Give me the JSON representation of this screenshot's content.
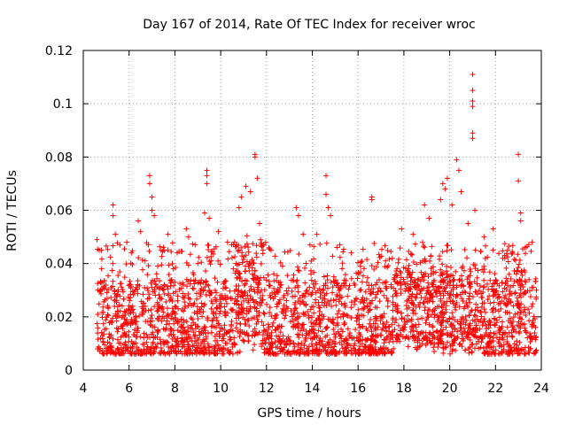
{
  "chart_data": {
    "type": "scatter",
    "title": "Day 167 of 2014, Rate Of TEC Index for receiver wroc",
    "xlabel": "GPS time / hours",
    "ylabel": "ROTI / TECUs",
    "xlim": [
      4,
      24
    ],
    "ylim": [
      0,
      0.12
    ],
    "xticks": [
      4,
      6,
      8,
      10,
      12,
      14,
      16,
      18,
      20,
      22,
      24
    ],
    "xtick_labels": [
      "4",
      "6",
      "8",
      "10",
      "12",
      "14",
      "16",
      "18",
      "20",
      "22",
      "24"
    ],
    "yticks": [
      0,
      0.02,
      0.04,
      0.06,
      0.08,
      0.1,
      0.12
    ],
    "ytick_labels": [
      "0",
      "0.02",
      "0.04",
      "0.06",
      "0.08",
      "0.1",
      "0.12"
    ],
    "grid": true,
    "marker": "+",
    "color": "#ff0000",
    "series": [
      {
        "name": "ROTI",
        "points": [
          [
            4.6,
            0.049
          ],
          [
            4.7,
            0.045
          ],
          [
            4.8,
            0.038
          ],
          [
            4.9,
            0.031
          ],
          [
            5.3,
            0.062
          ],
          [
            5.3,
            0.058
          ],
          [
            5.4,
            0.051
          ],
          [
            5.6,
            0.047
          ],
          [
            5.9,
            0.048
          ],
          [
            6.1,
            0.044
          ],
          [
            6.4,
            0.056
          ],
          [
            6.5,
            0.052
          ],
          [
            6.7,
            0.041
          ],
          [
            6.9,
            0.073
          ],
          [
            6.9,
            0.07
          ],
          [
            7.0,
            0.065
          ],
          [
            7.0,
            0.06
          ],
          [
            7.1,
            0.058
          ],
          [
            7.4,
            0.045
          ],
          [
            7.7,
            0.051
          ],
          [
            8.1,
            0.044
          ],
          [
            8.5,
            0.053
          ],
          [
            8.6,
            0.05
          ],
          [
            9.0,
            0.04
          ],
          [
            9.3,
            0.059
          ],
          [
            9.4,
            0.075
          ],
          [
            9.4,
            0.073
          ],
          [
            9.4,
            0.07
          ],
          [
            9.5,
            0.057
          ],
          [
            9.9,
            0.052
          ],
          [
            10.3,
            0.048
          ],
          [
            10.8,
            0.061
          ],
          [
            10.9,
            0.065
          ],
          [
            11.1,
            0.069
          ],
          [
            11.3,
            0.067
          ],
          [
            11.5,
            0.081
          ],
          [
            11.5,
            0.08
          ],
          [
            11.6,
            0.072
          ],
          [
            11.7,
            0.055
          ],
          [
            12.2,
            0.045
          ],
          [
            12.7,
            0.039
          ],
          [
            13.3,
            0.061
          ],
          [
            13.4,
            0.058
          ],
          [
            13.6,
            0.051
          ],
          [
            13.9,
            0.047
          ],
          [
            14.2,
            0.051
          ],
          [
            14.6,
            0.073
          ],
          [
            14.6,
            0.066
          ],
          [
            14.7,
            0.061
          ],
          [
            14.8,
            0.058
          ],
          [
            15.2,
            0.047
          ],
          [
            15.7,
            0.044
          ],
          [
            16.1,
            0.039
          ],
          [
            16.6,
            0.065
          ],
          [
            16.6,
            0.064
          ],
          [
            17.2,
            0.041
          ],
          [
            17.9,
            0.053
          ],
          [
            18.4,
            0.051
          ],
          [
            18.9,
            0.062
          ],
          [
            19.1,
            0.057
          ],
          [
            19.6,
            0.064
          ],
          [
            19.7,
            0.07
          ],
          [
            19.8,
            0.068
          ],
          [
            19.9,
            0.072
          ],
          [
            20.1,
            0.062
          ],
          [
            20.3,
            0.079
          ],
          [
            20.4,
            0.075
          ],
          [
            20.5,
            0.067
          ],
          [
            20.8,
            0.055
          ],
          [
            21.0,
            0.111
          ],
          [
            21.0,
            0.105
          ],
          [
            21.0,
            0.101
          ],
          [
            21.0,
            0.099
          ],
          [
            21.0,
            0.089
          ],
          [
            21.0,
            0.087
          ],
          [
            21.1,
            0.06
          ],
          [
            21.5,
            0.05
          ],
          [
            21.9,
            0.053
          ],
          [
            22.4,
            0.043
          ],
          [
            23.0,
            0.081
          ],
          [
            23.0,
            0.071
          ],
          [
            23.1,
            0.059
          ],
          [
            23.1,
            0.056
          ],
          [
            23.3,
            0.046
          ],
          [
            23.6,
            0.048
          ]
        ],
        "background_note": "Dense band of points between about 0.005 and 0.03 TECU covering the whole observed interval 4.6 to 23.8 h."
      }
    ]
  }
}
